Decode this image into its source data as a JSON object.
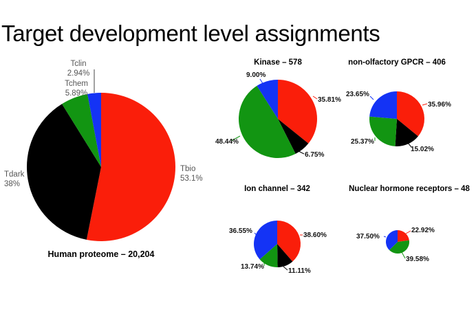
{
  "title": "Target development level assignments",
  "colors": {
    "Tclin": "#1433f5",
    "Tchem": "#129512",
    "Tbio": "#fa1e0a",
    "Tdark": "#000000"
  },
  "chart_data": [
    {
      "type": "pie",
      "title": "Human proteome – 20,204",
      "slices": [
        {
          "name": "Tbio",
          "value": 53.1,
          "label_name": "Tbio",
          "label_value": "53.1%"
        },
        {
          "name": "Tdark",
          "value": 38,
          "label_name": "Tdark",
          "label_value": "38%"
        },
        {
          "name": "Tchem",
          "value": 5.89,
          "label_name": "Tchem",
          "label_value": "5.89%"
        },
        {
          "name": "Tclin",
          "value": 2.94,
          "label_name": "Tclin",
          "label_value": "2.94%"
        }
      ]
    },
    {
      "type": "pie",
      "title": "Kinase – 578",
      "slices": [
        {
          "name": "Tbio",
          "value": 35.81,
          "label_value": "35.81%"
        },
        {
          "name": "Tdark",
          "value": 6.75,
          "label_value": "6.75%"
        },
        {
          "name": "Tchem",
          "value": 48.44,
          "label_value": "48.44%"
        },
        {
          "name": "Tclin",
          "value": 9.0,
          "label_value": "9.00%"
        }
      ]
    },
    {
      "type": "pie",
      "title": "non-olfactory GPCR – 406",
      "slices": [
        {
          "name": "Tbio",
          "value": 35.96,
          "label_value": "35.96%"
        },
        {
          "name": "Tdark",
          "value": 15.02,
          "label_value": "15.02%"
        },
        {
          "name": "Tchem",
          "value": 25.37,
          "label_value": "25.37%"
        },
        {
          "name": "Tclin",
          "value": 23.65,
          "label_value": "23.65%"
        }
      ]
    },
    {
      "type": "pie",
      "title": "Ion channel – 342",
      "slices": [
        {
          "name": "Tbio",
          "value": 38.6,
          "label_value": "38.60%"
        },
        {
          "name": "Tdark",
          "value": 11.11,
          "label_value": "11.11%"
        },
        {
          "name": "Tchem",
          "value": 13.74,
          "label_value": "13.74%"
        },
        {
          "name": "Tclin",
          "value": 36.55,
          "label_value": "36.55%"
        }
      ]
    },
    {
      "type": "pie",
      "title": "Nuclear hormone receptors – 48",
      "slices": [
        {
          "name": "Tbio",
          "value": 22.92,
          "label_value": "22.92%"
        },
        {
          "name": "Tchem",
          "value": 39.58,
          "label_value": "39.58%"
        },
        {
          "name": "Tclin",
          "value": 37.5,
          "label_value": "37.50%"
        }
      ]
    }
  ]
}
